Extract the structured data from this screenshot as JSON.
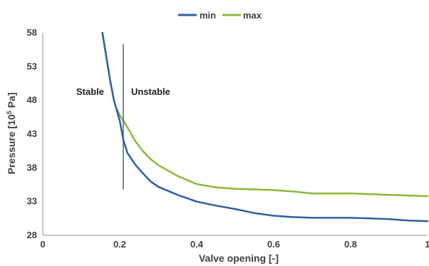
{
  "chart_data": {
    "type": "line",
    "xlabel": "Valve opening [-]",
    "ylabel": {
      "prefix": "Pressure  [10",
      "sup": "5",
      "suffix": " Pa]"
    },
    "xlim": [
      0,
      1
    ],
    "ylim": [
      28,
      58
    ],
    "xticks": [
      "0",
      "0.2",
      "0.4",
      "0.6",
      "0.8",
      "1"
    ],
    "yticks": [
      "28",
      "33",
      "38",
      "43",
      "48",
      "53",
      "58"
    ],
    "grid": false,
    "legend_position": "top-center",
    "annotations": {
      "left_label": "Stable",
      "right_label": "Unstable",
      "divider_x": 0.2,
      "divider_y_range": [
        35,
        56
      ]
    },
    "series": [
      {
        "name": "min",
        "color": "#2e5fa5",
        "x": [
          0.155,
          0.165,
          0.175,
          0.185,
          0.19,
          0.2,
          0.21,
          0.22,
          0.24,
          0.26,
          0.28,
          0.3,
          0.35,
          0.4,
          0.45,
          0.5,
          0.55,
          0.6,
          0.65,
          0.7,
          0.75,
          0.8,
          0.85,
          0.9,
          0.95,
          1.0
        ],
        "y": [
          58,
          54.5,
          51,
          48,
          47,
          45,
          42,
          40.2,
          38.5,
          37.2,
          36.0,
          35.2,
          34.0,
          33.0,
          32.4,
          31.9,
          31.3,
          30.9,
          30.7,
          30.6,
          30.6,
          30.6,
          30.5,
          30.4,
          30.2,
          30.1
        ]
      },
      {
        "name": "max",
        "color": "#8ab83b",
        "x": [
          0.155,
          0.165,
          0.175,
          0.185,
          0.19,
          0.2,
          0.21,
          0.22,
          0.24,
          0.26,
          0.28,
          0.3,
          0.35,
          0.4,
          0.45,
          0.5,
          0.55,
          0.6,
          0.65,
          0.7,
          0.75,
          0.8,
          0.85,
          0.9,
          0.95,
          1.0
        ],
        "y": [
          58,
          54.5,
          51,
          48,
          47,
          45.8,
          44.9,
          44.0,
          42.0,
          40.5,
          39.3,
          38.4,
          36.8,
          35.6,
          35.1,
          34.9,
          34.8,
          34.7,
          34.5,
          34.2,
          34.2,
          34.2,
          34.1,
          34.0,
          33.9,
          33.8
        ]
      }
    ]
  }
}
